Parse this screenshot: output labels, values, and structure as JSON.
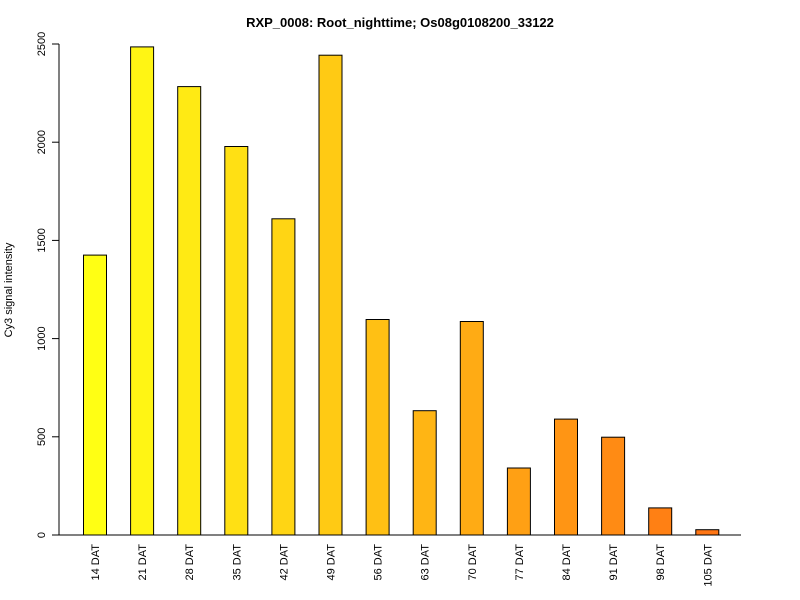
{
  "chart_data": {
    "type": "bar",
    "title": "RXP_0008: Root_nighttime; Os08g0108200_33122",
    "xlabel": "",
    "ylabel": "Cy3 signal intensity",
    "ylim": [
      0,
      2500
    ],
    "yticks": [
      0,
      500,
      1000,
      1500,
      2000,
      2500
    ],
    "grid": false,
    "categories": [
      "14 DAT",
      "21 DAT",
      "28 DAT",
      "35 DAT",
      "42 DAT",
      "49 DAT",
      "56 DAT",
      "63 DAT",
      "70 DAT",
      "77 DAT",
      "84 DAT",
      "91 DAT",
      "98 DAT",
      "105 DAT"
    ],
    "values": [
      1425,
      2485,
      2283,
      1978,
      1610,
      2443,
      1097,
      633,
      1087,
      341,
      590,
      498,
      138,
      27
    ],
    "colors": [
      "#FFFF14",
      "#FFF514",
      "#FFEA14",
      "#FFE014",
      "#FFD514",
      "#FFCA14",
      "#FFC014",
      "#FFB514",
      "#FFAB14",
      "#FFA014",
      "#FF9514",
      "#FF8B14",
      "#FF8014",
      "#FF7614"
    ]
  }
}
